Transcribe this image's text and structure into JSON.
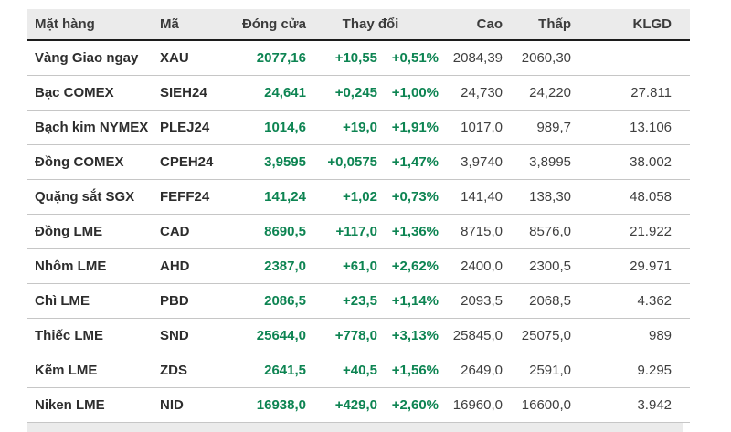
{
  "colors": {
    "positive": "#0d8452",
    "header_bg": "#ebebeb",
    "header_text": "#3b3b3b",
    "row_text": "#2d2d2d",
    "muted_num": "#3f3f3f",
    "row_divider": "#c6c6c6",
    "header_divider": "#1c1c1c"
  },
  "table": {
    "headers": {
      "name": "Mặt hàng",
      "code": "Mã",
      "close": "Đóng cửa",
      "change": "Thay đổi",
      "high": "Cao",
      "low": "Thấp",
      "volume": "KLGD"
    },
    "rows": [
      {
        "name": "Vàng Giao ngay",
        "code": "XAU",
        "close": "2077,16",
        "change_value": "+10,55",
        "change_percent": "+0,51%",
        "high": "2084,39",
        "low": "2060,30",
        "volume": ""
      },
      {
        "name": "Bạc COMEX",
        "code": "SIEH24",
        "close": "24,641",
        "change_value": "+0,245",
        "change_percent": "+1,00%",
        "high": "24,730",
        "low": "24,220",
        "volume": "27.811"
      },
      {
        "name": "Bạch kim NYMEX",
        "code": "PLEJ24",
        "close": "1014,6",
        "change_value": "+19,0",
        "change_percent": "+1,91%",
        "high": "1017,0",
        "low": "989,7",
        "volume": "13.106"
      },
      {
        "name": "Đồng COMEX",
        "code": "CPEH24",
        "close": "3,9595",
        "change_value": "+0,0575",
        "change_percent": "+1,47%",
        "high": "3,9740",
        "low": "3,8995",
        "volume": "38.002"
      },
      {
        "name": "Quặng sắt SGX",
        "code": "FEFF24",
        "close": "141,24",
        "change_value": "+1,02",
        "change_percent": "+0,73%",
        "high": "141,40",
        "low": "138,30",
        "volume": "48.058"
      },
      {
        "name": "Đồng LME",
        "code": "CAD",
        "close": "8690,5",
        "change_value": "+117,0",
        "change_percent": "+1,36%",
        "high": "8715,0",
        "low": "8576,0",
        "volume": "21.922"
      },
      {
        "name": "Nhôm LME",
        "code": "AHD",
        "close": "2387,0",
        "change_value": "+61,0",
        "change_percent": "+2,62%",
        "high": "2400,0",
        "low": "2300,5",
        "volume": "29.971"
      },
      {
        "name": "Chì LME",
        "code": "PBD",
        "close": "2086,5",
        "change_value": "+23,5",
        "change_percent": "+1,14%",
        "high": "2093,5",
        "low": "2068,5",
        "volume": "4.362"
      },
      {
        "name": "Thiếc LME",
        "code": "SND",
        "close": "25644,0",
        "change_value": "+778,0",
        "change_percent": "+3,13%",
        "high": "25845,0",
        "low": "25075,0",
        "volume": "989"
      },
      {
        "name": "Kẽm LME",
        "code": "ZDS",
        "close": "2641,5",
        "change_value": "+40,5",
        "change_percent": "+1,56%",
        "high": "2649,0",
        "low": "2591,0",
        "volume": "9.295"
      },
      {
        "name": "Niken LME",
        "code": "NID",
        "close": "16938,0",
        "change_value": "+429,0",
        "change_percent": "+2,60%",
        "high": "16960,0",
        "low": "16600,0",
        "volume": "3.942"
      }
    ]
  }
}
